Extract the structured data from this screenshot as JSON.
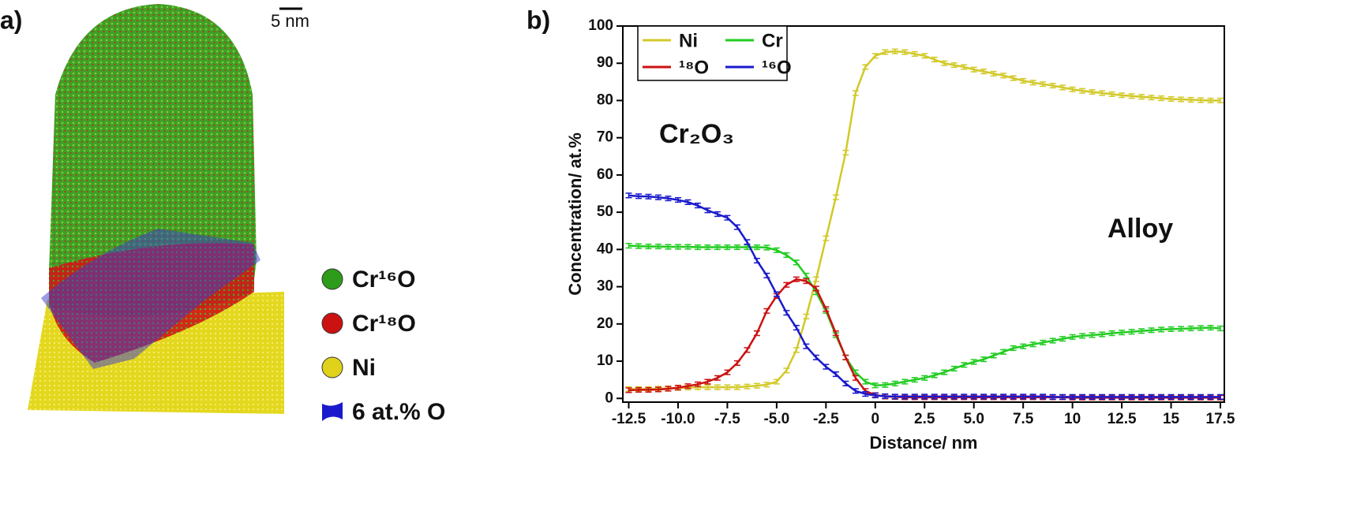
{
  "panel_a": {
    "label": "a)",
    "scale_bar": "5 nm",
    "legend": [
      {
        "name": "Cr¹⁶O",
        "color": "#2e9c1a"
      },
      {
        "name": "Cr¹⁸O",
        "color": "#cc1111"
      },
      {
        "name": "Ni",
        "color": "#e0d21a"
      },
      {
        "name": "6 at.% O",
        "color": "#1a1acc"
      }
    ]
  },
  "chart_data": {
    "type": "line",
    "panel_label": "b)",
    "x_label": "Distance/ nm",
    "y_label": "Concentration/ at.%",
    "annotations": [
      "Cr₂O₃",
      "Alloy"
    ],
    "x": [
      -12.5,
      -12,
      -11.5,
      -11,
      -10.5,
      -10,
      -9.5,
      -9,
      -8.5,
      -8,
      -7.5,
      -7,
      -6.5,
      -6,
      -5.5,
      -5,
      -4.5,
      -4,
      -3.5,
      -3,
      -2.5,
      -2,
      -1.5,
      -1,
      -0.5,
      0,
      0.5,
      1,
      1.5,
      2,
      2.5,
      3,
      3.5,
      4,
      4.5,
      5,
      5.5,
      6,
      6.5,
      7,
      7.5,
      8,
      8.5,
      9,
      9.5,
      10,
      10.5,
      11,
      11.5,
      12,
      12.5,
      13,
      13.5,
      14,
      14.5,
      15,
      15.5,
      16,
      16.5,
      17,
      17.5
    ],
    "series": [
      {
        "name": "Ni",
        "color": "#d2c928",
        "error": 0.6,
        "values": [
          2.5,
          2.5,
          2.5,
          2.6,
          2.7,
          2.8,
          2.9,
          3.0,
          3.0,
          3.0,
          3.0,
          3.0,
          3.2,
          3.4,
          3.7,
          4.5,
          7.5,
          13,
          22,
          32,
          43,
          54,
          66,
          82,
          89,
          92,
          93,
          93.2,
          93,
          92.5,
          92,
          91,
          90,
          89.5,
          89,
          88.3,
          87.8,
          87.2,
          86.7,
          86,
          85.3,
          84.8,
          84.4,
          84,
          83.5,
          83,
          82.6,
          82.3,
          82,
          81.7,
          81.4,
          81.2,
          81,
          80.8,
          80.6,
          80.4,
          80.3,
          80.2,
          80.1,
          80,
          80
        ]
      },
      {
        "name": "Cr",
        "color": "#22cc22",
        "error": 0.6,
        "values": [
          41,
          40.9,
          40.8,
          40.8,
          40.7,
          40.7,
          40.7,
          40.6,
          40.6,
          40.6,
          40.6,
          40.6,
          40.6,
          40.6,
          40.5,
          39.8,
          38.5,
          36.5,
          33,
          28.5,
          23.5,
          17,
          11,
          7,
          4.5,
          3.5,
          3.6,
          4,
          4.5,
          5,
          5.5,
          6.2,
          7,
          8,
          9,
          9.8,
          10.5,
          11.5,
          12.5,
          13.5,
          14,
          14.5,
          15,
          15.5,
          16,
          16.5,
          16.8,
          17,
          17.2,
          17.5,
          17.7,
          17.9,
          18.1,
          18.3,
          18.5,
          18.6,
          18.7,
          18.8,
          18.9,
          19,
          18.8
        ]
      },
      {
        "name": "¹⁸O",
        "color": "#cc1111",
        "error": 0.6,
        "values": [
          2.2,
          2.3,
          2.3,
          2.4,
          2.6,
          2.9,
          3.3,
          3.8,
          4.5,
          5.5,
          7,
          9.5,
          13,
          17.5,
          23.5,
          27.5,
          30.5,
          32,
          31.5,
          29.5,
          24,
          17.5,
          11,
          5.5,
          2,
          0.9,
          0.5,
          0.4,
          0.3,
          0.3,
          0.3,
          0.3,
          0.3,
          0.3,
          0.3,
          0.3,
          0.3,
          0.3,
          0.3,
          0.3,
          0.3,
          0.3,
          0.3,
          0.3,
          0.3,
          0.2,
          0.2,
          0.2,
          0.2,
          0.2,
          0.2,
          0.2,
          0.2,
          0.2,
          0.2,
          0.2,
          0.2,
          0.2,
          0.2,
          0.2,
          0.2
        ]
      },
      {
        "name": "¹⁶O",
        "color": "#1a1acc",
        "error": 0.6,
        "values": [
          54.5,
          54.3,
          54.2,
          54,
          53.7,
          53.3,
          52.7,
          51.8,
          50.5,
          49.5,
          48.5,
          46,
          42,
          37,
          33,
          28,
          23,
          19,
          14,
          11,
          8.5,
          6.5,
          4,
          2,
          1.2,
          0.8,
          0.6,
          0.5,
          0.5,
          0.5,
          0.5,
          0.5,
          0.5,
          0.5,
          0.5,
          0.5,
          0.5,
          0.5,
          0.5,
          0.5,
          0.5,
          0.5,
          0.5,
          0.4,
          0.4,
          0.4,
          0.4,
          0.4,
          0.4,
          0.4,
          0.4,
          0.4,
          0.4,
          0.4,
          0.4,
          0.4,
          0.4,
          0.4,
          0.4,
          0.4,
          0.4
        ]
      }
    ],
    "xlim": [
      -12.8,
      17.7
    ],
    "ylim": [
      -1,
      100
    ],
    "xticks": [
      -12.5,
      {
        "value": -10,
        "label": "-10.0"
      },
      -7.5,
      {
        "value": -5,
        "label": "-5.0"
      },
      -2.5,
      0,
      2.5,
      {
        "value": 5,
        "label": "5.0"
      },
      7.5,
      10,
      12.5,
      15,
      17.5
    ],
    "yticks": [
      0,
      10,
      20,
      30,
      40,
      50,
      60,
      70,
      80,
      90,
      100
    ],
    "legend": "upper left"
  }
}
